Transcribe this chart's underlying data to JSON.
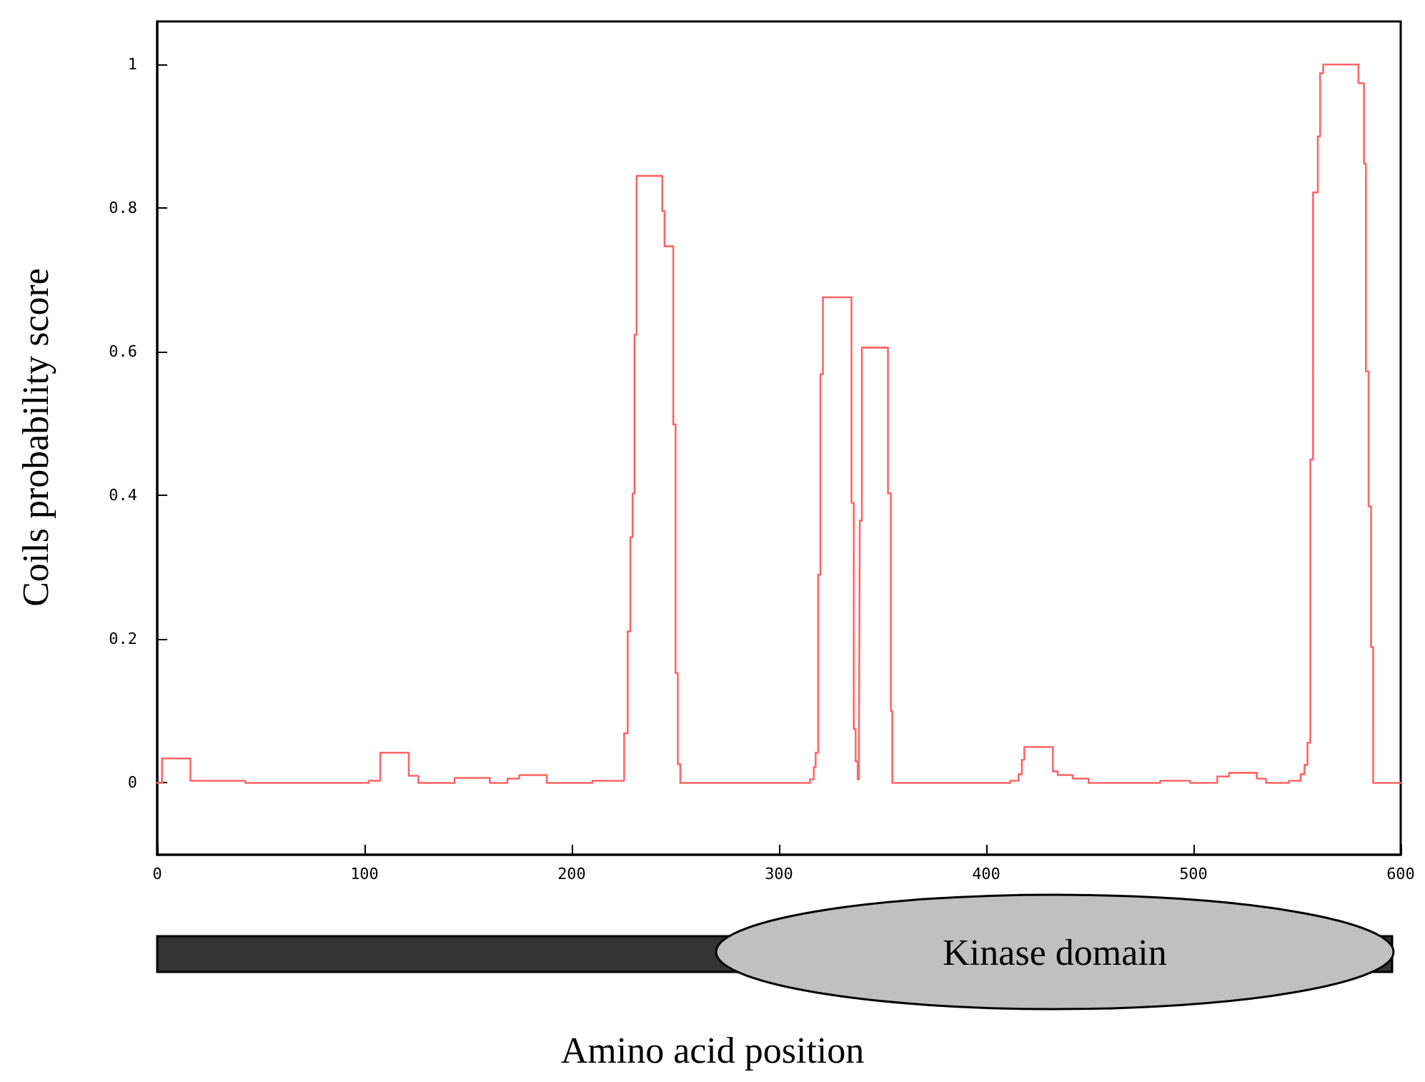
{
  "chart_data": {
    "type": "step",
    "xlabel": "Amino acid position",
    "ylabel": "Coils probability score",
    "annotations": [
      "Kinase domain"
    ],
    "xlim": [
      0,
      600
    ],
    "xticks": [
      0,
      100,
      200,
      300,
      400,
      500,
      600
    ],
    "ylim": [
      -0.1,
      1.06
    ],
    "yticks": [
      0,
      0.2,
      0.4,
      0.6,
      0.8,
      1
    ],
    "grid": false,
    "marker": "none",
    "line_style": "solid",
    "series": [
      {
        "color": "#ff6666",
        "x": [
          0,
          2.3,
          16,
          42.5,
          102,
          107.6,
          121.4,
          126,
          143.5,
          160.5,
          169,
          174.7,
          188,
          210,
          225.3,
          227,
          228.3,
          229.4,
          230.3,
          231.3,
          243.7,
          244.8,
          249,
          250.1,
          251.2,
          252.4,
          315,
          316.8,
          317.7,
          318.9,
          320,
          321.2,
          335,
          336.1,
          337,
          338,
          338.6,
          339,
          340,
          352.6,
          354,
          354.7,
          411.5,
          415.6,
          417.2,
          418.4,
          432.2,
          434.5,
          441.8,
          449.4,
          484,
          498.4,
          511.5,
          517.2,
          530.6,
          535,
          546,
          551.7,
          553.6,
          555,
          556.4,
          557.7,
          560,
          561.1,
          562.6,
          577.9,
          579.6,
          582.3,
          583.2,
          584.5,
          585.7,
          586.7,
          600
        ],
        "values": [
          0,
          0.034,
          0.003,
          0,
          0.003,
          0.042,
          0.01,
          0,
          0.007,
          0,
          0.006,
          0.011,
          0,
          0.003,
          0.069,
          0.211,
          0.342,
          0.403,
          0.624,
          0.845,
          0.796,
          0.747,
          0.499,
          0.153,
          0.026,
          0,
          0.005,
          0.022,
          0.042,
          0.29,
          0.569,
          0.676,
          0.39,
          0.075,
          0.03,
          0.005,
          0.065,
          0.365,
          0.606,
          0.403,
          0.1,
          0,
          0.003,
          0.012,
          0.032,
          0.05,
          0.016,
          0.011,
          0.006,
          0,
          0.003,
          0,
          0.009,
          0.014,
          0.006,
          0,
          0.003,
          0.012,
          0.025,
          0.056,
          0.45,
          0.822,
          0.9,
          0.988,
          1,
          1,
          0.974,
          0.862,
          0.573,
          0.385,
          0.189,
          0,
          0
        ]
      }
    ]
  }
}
